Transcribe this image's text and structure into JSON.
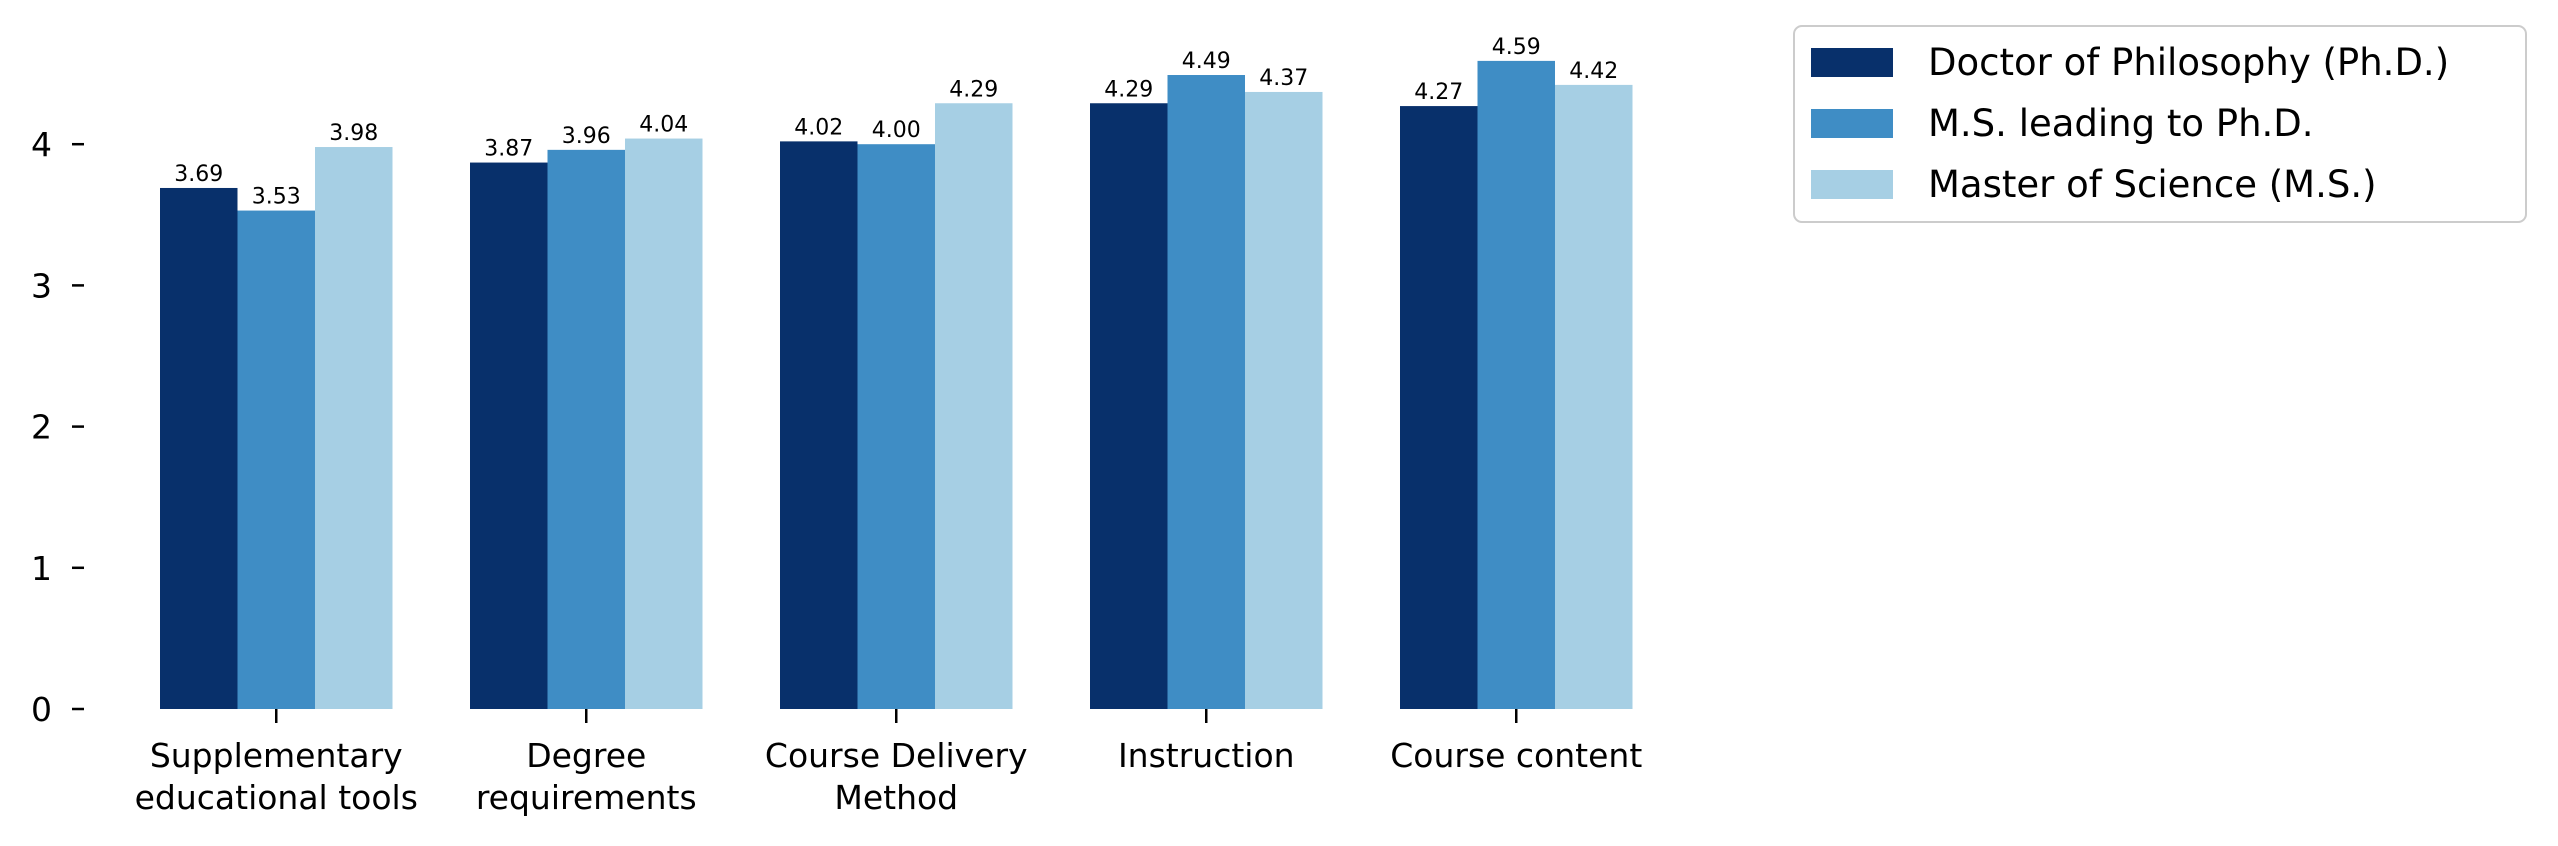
{
  "chart_data": {
    "type": "bar",
    "title": "",
    "xlabel": "",
    "ylabel": "",
    "categories": [
      [
        "Supplementary",
        "educational tools"
      ],
      [
        "Degree",
        "requirements"
      ],
      [
        "Course Delivery",
        "Method"
      ],
      [
        "Instruction"
      ],
      [
        "Course content"
      ]
    ],
    "series": [
      {
        "name": "Doctor of Philosophy (Ph.D.)",
        "color": "#08306b",
        "values": [
          3.69,
          3.87,
          4.02,
          4.29,
          4.27
        ],
        "labels": [
          "3.69",
          "3.87",
          "4.02",
          "4.29",
          "4.27"
        ]
      },
      {
        "name": "M.S. leading to Ph.D.",
        "color": "#3f8dc5",
        "values": [
          3.53,
          3.96,
          4.0,
          4.49,
          4.59
        ],
        "labels": [
          "3.53",
          "3.96",
          "4.00",
          "4.49",
          "4.59"
        ]
      },
      {
        "name": "Master of Science (M.S.)",
        "color": "#a6cfe4",
        "values": [
          3.98,
          4.04,
          4.29,
          4.37,
          4.42
        ],
        "labels": [
          "3.98",
          "4.04",
          "4.29",
          "4.37",
          "4.42"
        ]
      }
    ],
    "yticks": [
      0,
      1,
      2,
      3,
      4
    ],
    "ytick_labels": [
      "0",
      "1",
      "2",
      "3",
      "4"
    ],
    "ylim": [
      0,
      4.6
    ],
    "grid": false,
    "legend_position": "outside-top-right"
  }
}
